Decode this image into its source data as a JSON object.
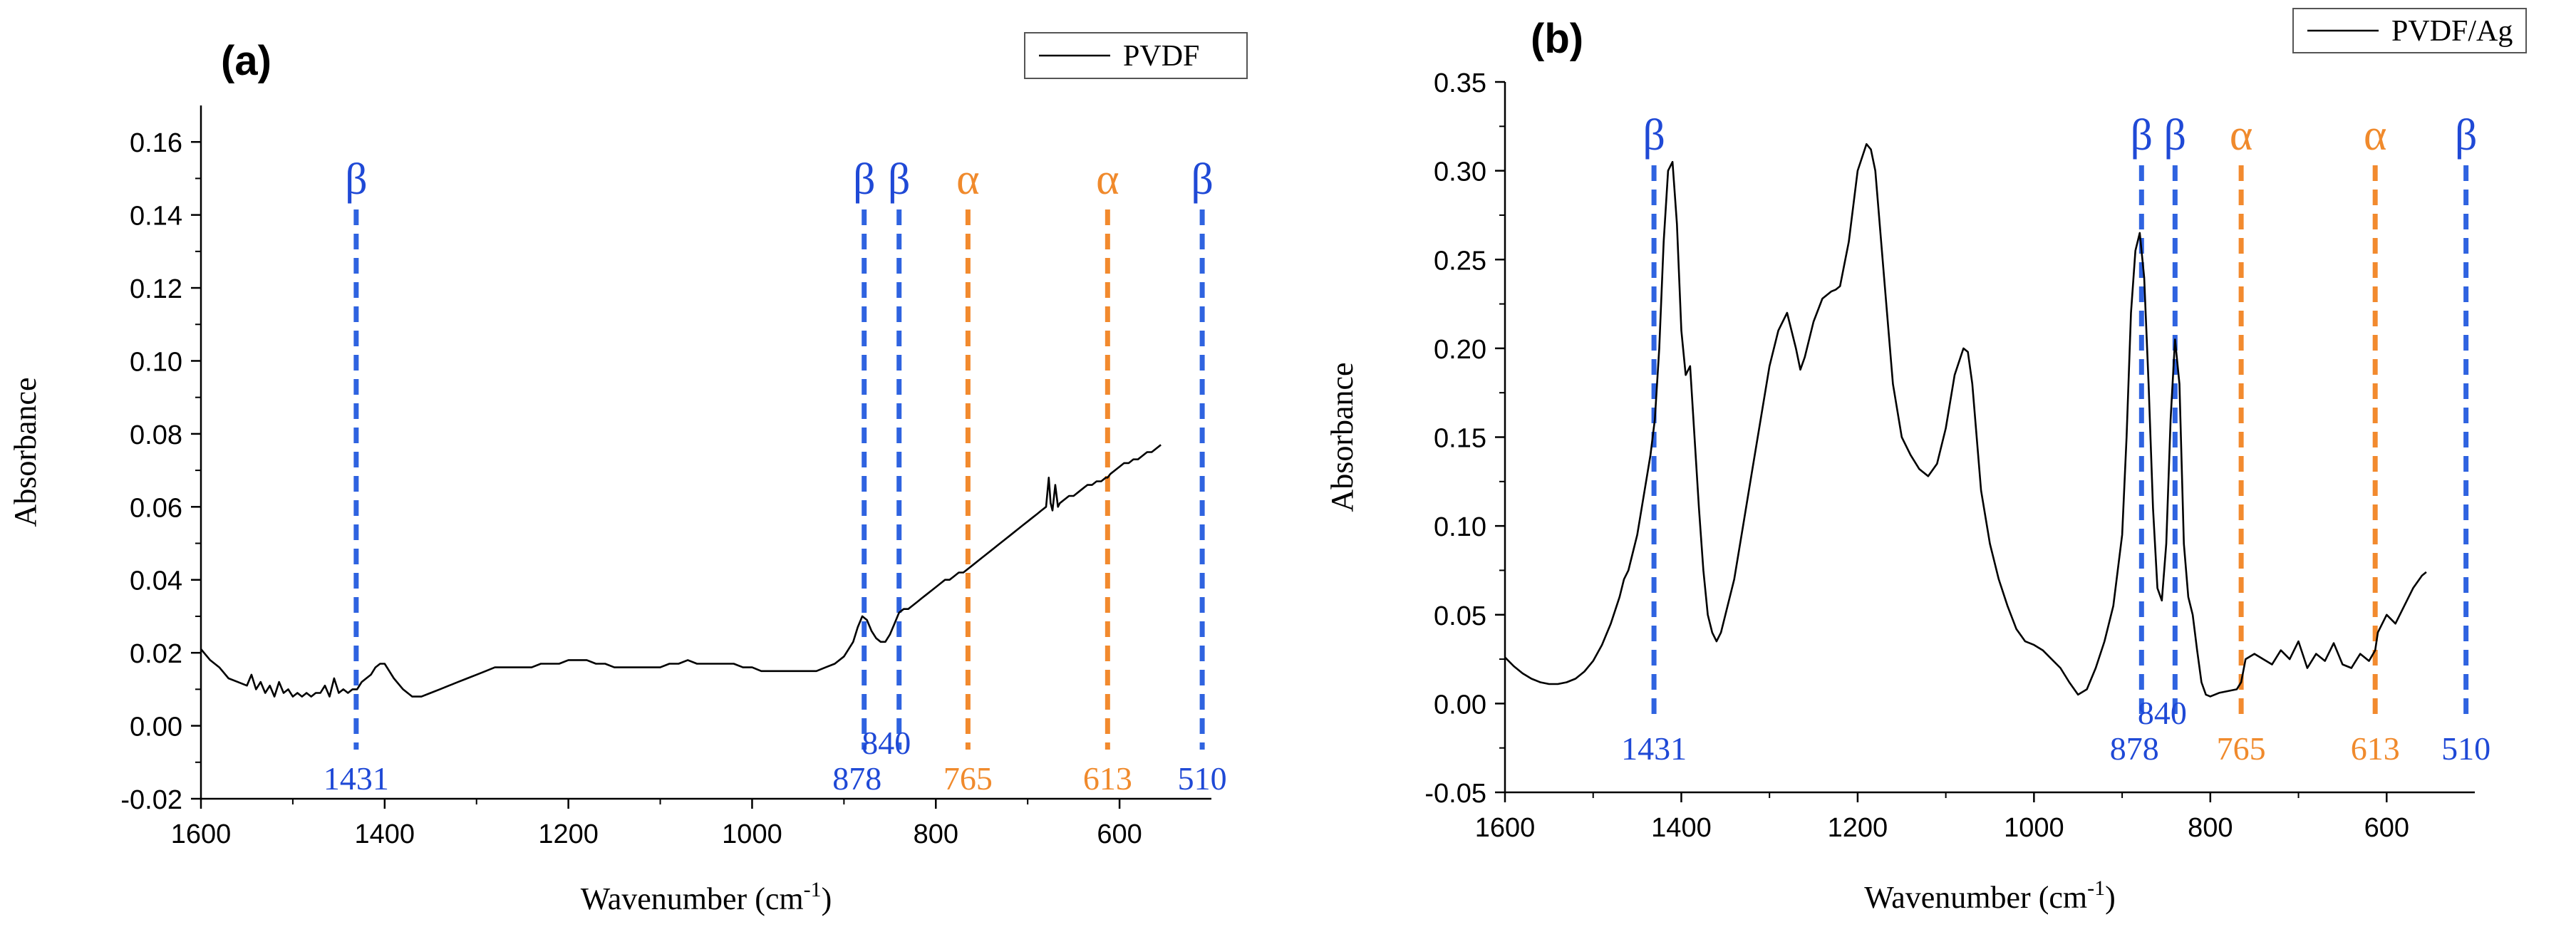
{
  "colors": {
    "beta": "#1f49d6",
    "alpha": "#f08a2c",
    "beta_line": "#2f63e0",
    "alpha_line": "#f28a2e",
    "spectrum": "#000000",
    "axis": "#000000"
  },
  "chart_data": [
    {
      "type": "line",
      "panel_label": "(a)",
      "title": "",
      "xlabel": "Wavenumber (cm",
      "xlabel_sup": "-1",
      "xlabel_close": ")",
      "ylabel": "Absorbance",
      "xlim": [
        1600,
        500
      ],
      "ylim": [
        -0.02,
        0.17
      ],
      "x_ticks": [
        1600,
        1400,
        1200,
        1000,
        800,
        600
      ],
      "y_ticks": [
        -0.02,
        0.0,
        0.02,
        0.04,
        0.06,
        0.08,
        0.1,
        0.12,
        0.14,
        0.16
      ],
      "y_tick_labels": [
        "-0.02",
        "0.00",
        "0.02",
        "0.04",
        "0.06",
        "0.08",
        "0.10",
        "0.12",
        "0.14",
        "0.16"
      ],
      "legend": {
        "label": "PVDF",
        "placement": "top-right"
      },
      "series": [
        {
          "name": "PVDF",
          "x": [
            1600,
            1590,
            1580,
            1570,
            1560,
            1550,
            1545,
            1540,
            1535,
            1530,
            1525,
            1520,
            1515,
            1510,
            1505,
            1500,
            1495,
            1490,
            1485,
            1480,
            1475,
            1470,
            1465,
            1460,
            1455,
            1450,
            1445,
            1440,
            1435,
            1430,
            1425,
            1420,
            1415,
            1410,
            1405,
            1400,
            1395,
            1390,
            1380,
            1370,
            1360,
            1350,
            1340,
            1330,
            1320,
            1310,
            1300,
            1290,
            1280,
            1270,
            1260,
            1250,
            1240,
            1230,
            1220,
            1210,
            1200,
            1190,
            1180,
            1170,
            1160,
            1150,
            1140,
            1130,
            1120,
            1110,
            1100,
            1090,
            1080,
            1070,
            1060,
            1050,
            1040,
            1030,
            1020,
            1010,
            1000,
            990,
            980,
            970,
            960,
            950,
            940,
            930,
            920,
            910,
            900,
            890,
            885,
            880,
            875,
            870,
            865,
            860,
            855,
            850,
            845,
            840,
            835,
            830,
            825,
            820,
            815,
            810,
            805,
            800,
            795,
            790,
            785,
            780,
            775,
            770,
            765,
            760,
            755,
            750,
            745,
            740,
            735,
            730,
            725,
            720,
            715,
            710,
            705,
            700,
            695,
            690,
            685,
            680,
            677,
            675,
            673,
            670,
            667,
            665,
            660,
            655,
            650,
            645,
            640,
            635,
            630,
            625,
            620,
            615,
            613,
            610,
            605,
            600,
            595,
            590,
            585,
            580,
            575,
            570,
            565,
            560,
            555
          ],
          "values": [
            0.021,
            0.018,
            0.016,
            0.013,
            0.012,
            0.011,
            0.014,
            0.01,
            0.012,
            0.009,
            0.011,
            0.008,
            0.012,
            0.009,
            0.01,
            0.008,
            0.009,
            0.008,
            0.009,
            0.008,
            0.009,
            0.009,
            0.011,
            0.008,
            0.013,
            0.009,
            0.01,
            0.009,
            0.01,
            0.01,
            0.012,
            0.013,
            0.014,
            0.016,
            0.017,
            0.017,
            0.015,
            0.013,
            0.01,
            0.008,
            0.008,
            0.009,
            0.01,
            0.011,
            0.012,
            0.013,
            0.014,
            0.015,
            0.016,
            0.016,
            0.016,
            0.016,
            0.016,
            0.017,
            0.017,
            0.017,
            0.018,
            0.018,
            0.018,
            0.017,
            0.017,
            0.016,
            0.016,
            0.016,
            0.016,
            0.016,
            0.016,
            0.017,
            0.017,
            0.018,
            0.017,
            0.017,
            0.017,
            0.017,
            0.017,
            0.016,
            0.016,
            0.015,
            0.015,
            0.015,
            0.015,
            0.015,
            0.015,
            0.015,
            0.016,
            0.017,
            0.019,
            0.023,
            0.027,
            0.03,
            0.029,
            0.026,
            0.024,
            0.023,
            0.023,
            0.025,
            0.028,
            0.031,
            0.032,
            0.032,
            0.033,
            0.034,
            0.035,
            0.036,
            0.037,
            0.038,
            0.039,
            0.04,
            0.04,
            0.041,
            0.042,
            0.042,
            0.043,
            0.044,
            0.045,
            0.046,
            0.047,
            0.048,
            0.049,
            0.05,
            0.051,
            0.052,
            0.053,
            0.054,
            0.055,
            0.056,
            0.057,
            0.058,
            0.059,
            0.06,
            0.068,
            0.061,
            0.059,
            0.066,
            0.06,
            0.061,
            0.062,
            0.063,
            0.063,
            0.064,
            0.065,
            0.066,
            0.066,
            0.067,
            0.067,
            0.068,
            0.068,
            0.069,
            0.07,
            0.071,
            0.072,
            0.072,
            0.073,
            0.073,
            0.074,
            0.075,
            0.075,
            0.076,
            0.077
          ]
        }
      ],
      "annotations": [
        {
          "label": "β",
          "position": 1431,
          "phase": "beta",
          "wavenumber_label": "1431"
        },
        {
          "label": "β",
          "position": 878,
          "phase": "beta",
          "wavenumber_label": "878"
        },
        {
          "label": "β",
          "position": 840,
          "phase": "beta",
          "wavenumber_label": "840"
        },
        {
          "label": "α",
          "position": 765,
          "phase": "alpha",
          "wavenumber_label": "765"
        },
        {
          "label": "α",
          "position": 613,
          "phase": "alpha",
          "wavenumber_label": "613"
        },
        {
          "label": "β",
          "position": 510,
          "phase": "beta",
          "wavenumber_label": "510"
        }
      ]
    },
    {
      "type": "line",
      "panel_label": "(b)",
      "title": "",
      "xlabel": "Wavenumber (cm",
      "xlabel_sup": "-1",
      "xlabel_close": ")",
      "ylabel": "Absorbance",
      "xlim": [
        1600,
        500
      ],
      "ylim": [
        -0.05,
        0.35
      ],
      "x_ticks": [
        1600,
        1400,
        1200,
        1000,
        800,
        600
      ],
      "y_ticks": [
        -0.05,
        0.0,
        0.05,
        0.1,
        0.15,
        0.2,
        0.25,
        0.3,
        0.35
      ],
      "y_tick_labels": [
        "-0.05",
        "0.00",
        "0.05",
        "0.10",
        "0.15",
        "0.20",
        "0.25",
        "0.30",
        "0.35"
      ],
      "legend": {
        "label": "PVDF/Ag",
        "placement": "top-right"
      },
      "series": [
        {
          "name": "PVDF/Ag",
          "x": [
            1600,
            1590,
            1580,
            1570,
            1560,
            1550,
            1540,
            1530,
            1520,
            1510,
            1500,
            1490,
            1480,
            1470,
            1465,
            1460,
            1455,
            1450,
            1445,
            1440,
            1435,
            1430,
            1425,
            1420,
            1415,
            1410,
            1405,
            1400,
            1395,
            1390,
            1385,
            1380,
            1375,
            1370,
            1365,
            1360,
            1355,
            1350,
            1340,
            1330,
            1320,
            1310,
            1300,
            1290,
            1280,
            1270,
            1265,
            1260,
            1250,
            1240,
            1230,
            1225,
            1220,
            1210,
            1200,
            1190,
            1185,
            1180,
            1170,
            1160,
            1150,
            1140,
            1130,
            1120,
            1110,
            1100,
            1090,
            1080,
            1075,
            1070,
            1060,
            1050,
            1040,
            1030,
            1020,
            1010,
            1000,
            990,
            980,
            970,
            960,
            950,
            940,
            930,
            920,
            910,
            900,
            895,
            890,
            885,
            880,
            875,
            870,
            865,
            860,
            855,
            850,
            845,
            840,
            835,
            830,
            825,
            820,
            815,
            810,
            805,
            800,
            795,
            790,
            780,
            770,
            765,
            760,
            750,
            740,
            730,
            720,
            710,
            700,
            690,
            680,
            670,
            660,
            650,
            640,
            630,
            620,
            613,
            610,
            600,
            590,
            580,
            570,
            560,
            555
          ],
          "values": [
            0.026,
            0.021,
            0.017,
            0.014,
            0.012,
            0.011,
            0.011,
            0.012,
            0.014,
            0.018,
            0.024,
            0.033,
            0.045,
            0.06,
            0.07,
            0.075,
            0.085,
            0.095,
            0.11,
            0.125,
            0.14,
            0.16,
            0.2,
            0.26,
            0.3,
            0.305,
            0.27,
            0.21,
            0.185,
            0.19,
            0.15,
            0.11,
            0.075,
            0.05,
            0.04,
            0.035,
            0.04,
            0.05,
            0.07,
            0.1,
            0.13,
            0.16,
            0.19,
            0.21,
            0.22,
            0.2,
            0.188,
            0.195,
            0.215,
            0.228,
            0.232,
            0.233,
            0.235,
            0.26,
            0.3,
            0.315,
            0.312,
            0.3,
            0.24,
            0.18,
            0.15,
            0.14,
            0.132,
            0.128,
            0.135,
            0.155,
            0.185,
            0.2,
            0.198,
            0.18,
            0.12,
            0.09,
            0.07,
            0.055,
            0.042,
            0.035,
            0.033,
            0.03,
            0.025,
            0.02,
            0.012,
            0.005,
            0.008,
            0.02,
            0.035,
            0.055,
            0.095,
            0.15,
            0.22,
            0.255,
            0.265,
            0.24,
            0.18,
            0.11,
            0.065,
            0.058,
            0.09,
            0.16,
            0.205,
            0.18,
            0.09,
            0.06,
            0.05,
            0.03,
            0.012,
            0.005,
            0.004,
            0.005,
            0.006,
            0.007,
            0.008,
            0.012,
            0.025,
            0.028,
            0.025,
            0.022,
            0.03,
            0.025,
            0.035,
            0.02,
            0.028,
            0.024,
            0.034,
            0.022,
            0.02,
            0.028,
            0.024,
            0.03,
            0.04,
            0.05,
            0.045,
            0.055,
            0.065,
            0.072,
            0.074
          ]
        }
      ],
      "annotations": [
        {
          "label": "β",
          "position": 1431,
          "phase": "beta",
          "wavenumber_label": "1431"
        },
        {
          "label": "β",
          "position": 878,
          "phase": "beta",
          "wavenumber_label": "878"
        },
        {
          "label": "β",
          "position": 840,
          "phase": "beta",
          "wavenumber_label": "840"
        },
        {
          "label": "α",
          "position": 765,
          "phase": "alpha",
          "wavenumber_label": "765"
        },
        {
          "label": "α",
          "position": 613,
          "phase": "alpha",
          "wavenumber_label": "613"
        },
        {
          "label": "β",
          "position": 510,
          "phase": "beta",
          "wavenumber_label": "510"
        }
      ]
    }
  ]
}
